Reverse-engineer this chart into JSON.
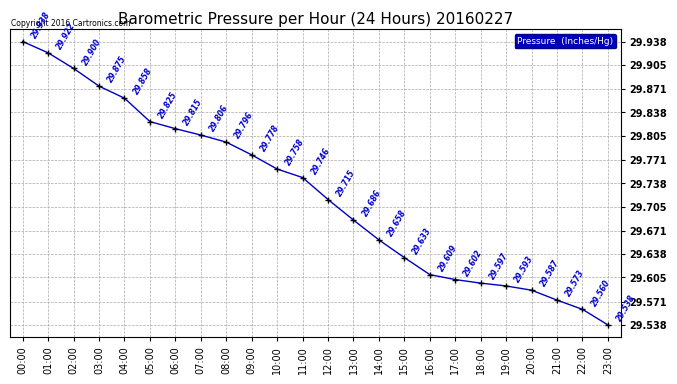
{
  "title": "Barometric Pressure per Hour (24 Hours) 20160227",
  "hours": [
    "00:00",
    "01:00",
    "02:00",
    "03:00",
    "04:00",
    "05:00",
    "06:00",
    "07:00",
    "08:00",
    "09:00",
    "10:00",
    "11:00",
    "12:00",
    "13:00",
    "14:00",
    "15:00",
    "16:00",
    "17:00",
    "18:00",
    "19:00",
    "20:00",
    "21:00",
    "22:00",
    "23:00"
  ],
  "values": [
    29.938,
    29.922,
    29.9,
    29.875,
    29.858,
    29.825,
    29.815,
    29.806,
    29.796,
    29.778,
    29.758,
    29.746,
    29.715,
    29.686,
    29.658,
    29.633,
    29.609,
    29.602,
    29.597,
    29.593,
    29.587,
    29.573,
    29.56,
    29.538
  ],
  "yticks": [
    29.538,
    29.571,
    29.605,
    29.638,
    29.671,
    29.705,
    29.738,
    29.771,
    29.805,
    29.838,
    29.871,
    29.905,
    29.938
  ],
  "ylim_min": 29.521,
  "ylim_max": 29.955,
  "line_color": "#0000bb",
  "marker_color": "#000000",
  "label_color": "#0000cc",
  "legend_text": "Pressure  (Inches/Hg)",
  "legend_bg": "#0000bb",
  "legend_fg": "#ffffff",
  "copyright_text": "Copyright 2016 Cartronics.com",
  "background_color": "#ffffff",
  "grid_color": "#aaaaaa",
  "grid_style": "--",
  "title_fontsize": 11,
  "label_fontsize": 6,
  "ytick_fontsize": 7,
  "xtick_fontsize": 7,
  "annotation_fontsize": 5.5,
  "annotation_rotation": 60
}
